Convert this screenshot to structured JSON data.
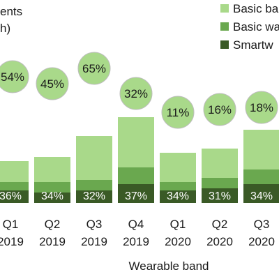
{
  "chart_data": {
    "type": "bar",
    "stacked": true,
    "title_fragments": [
      "ents",
      "h)"
    ],
    "xlabel": "Wearable band",
    "ylabel": "",
    "categories": [
      {
        "quarter": "Q1",
        "year": "2019"
      },
      {
        "quarter": "Q2",
        "year": "2019"
      },
      {
        "quarter": "Q3",
        "year": "2019"
      },
      {
        "quarter": "Q4",
        "year": "2019"
      },
      {
        "quarter": "Q1",
        "year": "2020"
      },
      {
        "quarter": "Q2",
        "year": "2020"
      },
      {
        "quarter": "Q3",
        "year": "2020"
      }
    ],
    "series": [
      {
        "name": "Smartw",
        "color": "#3a5a26",
        "values": [
          6,
          5,
          6,
          9,
          6,
          7,
          9
        ]
      },
      {
        "name": "Basic wa",
        "color": "#6aa84f",
        "values": [
          4,
          5,
          5,
          8,
          4,
          5,
          7
        ]
      },
      {
        "name": "Basic ba",
        "color": "#a9d98a",
        "values": [
          10,
          12,
          21,
          24,
          14,
          14,
          19
        ]
      }
    ],
    "share_labels": [
      "36%",
      "34%",
      "32%",
      "37%",
      "34%",
      "31%",
      "34%"
    ],
    "growth_labels": [
      "54%",
      "45%",
      "65%",
      "32%",
      "11%",
      "16%",
      "18%"
    ],
    "legend_position": "top-right",
    "grid": false,
    "growth_bubble_color": "#a9d98a"
  }
}
